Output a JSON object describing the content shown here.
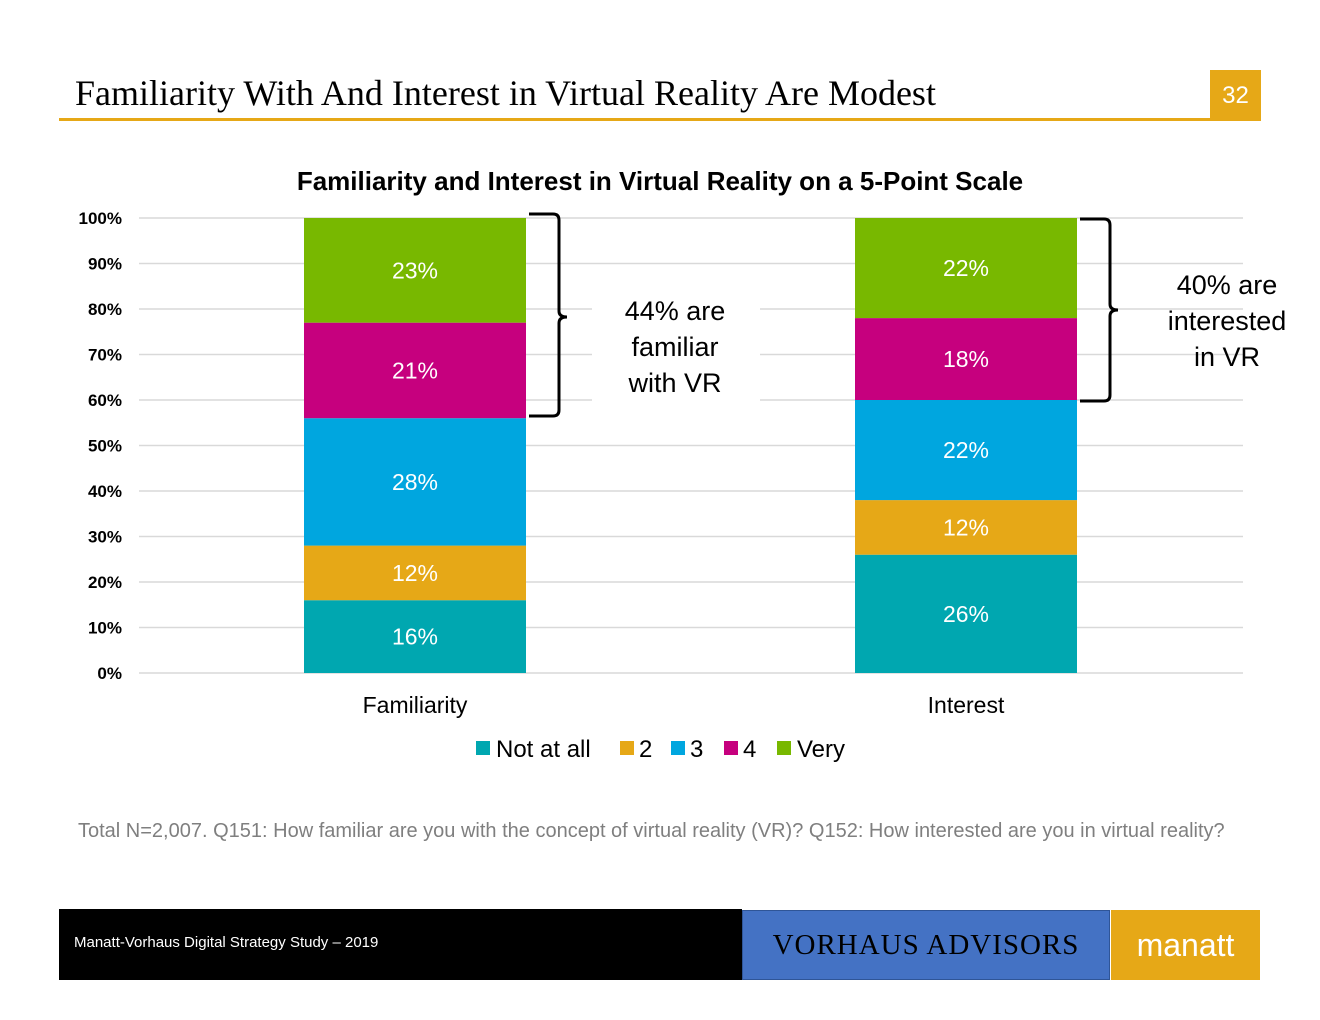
{
  "header": {
    "title": "Familiarity With And Interest in Virtual Reality Are Modest",
    "page_number": "32"
  },
  "chart_data": {
    "type": "bar",
    "stacked": true,
    "title": "Familiarity and Interest in Virtual Reality on a 5-Point Scale",
    "categories": [
      "Familiarity",
      "Interest"
    ],
    "series": [
      {
        "name": "Not at all",
        "values": [
          16,
          26
        ],
        "color": "#00a7b0"
      },
      {
        "name": "2",
        "values": [
          12,
          12
        ],
        "color": "#e6a817"
      },
      {
        "name": "3",
        "values": [
          28,
          22
        ],
        "color": "#00a6df"
      },
      {
        "name": "4",
        "values": [
          21,
          18
        ],
        "color": "#c6007e"
      },
      {
        "name": "Very",
        "values": [
          23,
          22
        ],
        "color": "#78b800"
      }
    ],
    "data_labels": [
      [
        "16%",
        "12%",
        "28%",
        "21%",
        "23%"
      ],
      [
        "26%",
        "12%",
        "22%",
        "18%",
        "22%"
      ]
    ],
    "ylim": [
      0,
      100
    ],
    "yticks": [
      0,
      10,
      20,
      30,
      40,
      50,
      60,
      70,
      80,
      90,
      100
    ],
    "ytick_labels": [
      "0%",
      "10%",
      "20%",
      "30%",
      "40%",
      "50%",
      "60%",
      "70%",
      "80%",
      "90%",
      "100%"
    ],
    "grid": true,
    "legend_position": "bottom",
    "annotations": [
      {
        "category": "Familiarity",
        "lines": [
          "44% are",
          "familiar",
          "with VR"
        ]
      },
      {
        "category": "Interest",
        "lines": [
          "40% are",
          "interested",
          "in VR"
        ]
      }
    ]
  },
  "footnote": "Total N=2,007. Q151: How familiar are you with the concept of virtual reality (VR)? Q152: How interested are you in virtual reality?",
  "footer": {
    "study": "Manatt-Vorhaus Digital Strategy Study – 2019",
    "vorhaus_logo": "VORHAUS ADVISORS",
    "manatt_logo": "manatt"
  }
}
